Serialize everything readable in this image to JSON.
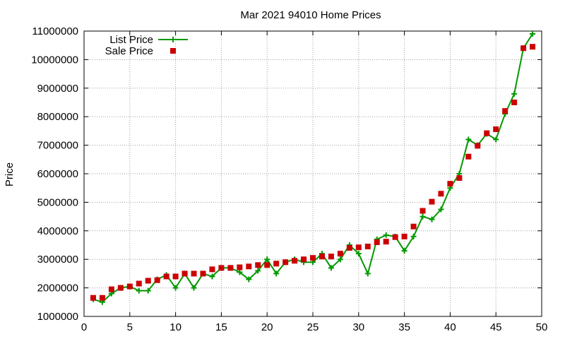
{
  "chart_data": {
    "type": "line",
    "title": "Mar 2021 94010 Home Prices",
    "xlabel": "",
    "ylabel": "Price",
    "xlim": [
      0,
      50
    ],
    "ylim": [
      1000000,
      11000000
    ],
    "xticks": [
      0,
      5,
      10,
      15,
      20,
      25,
      30,
      35,
      40,
      45,
      50
    ],
    "yticks": [
      1000000,
      2000000,
      3000000,
      4000000,
      5000000,
      6000000,
      7000000,
      8000000,
      9000000,
      10000000,
      11000000
    ],
    "grid": true,
    "legend_position": "top-left",
    "series": [
      {
        "name": "List Price",
        "style": "line+cross",
        "color": "#009900",
        "x": [
          1,
          2,
          3,
          4,
          5,
          6,
          7,
          8,
          9,
          10,
          11,
          12,
          13,
          14,
          15,
          16,
          17,
          18,
          19,
          20,
          21,
          22,
          23,
          24,
          25,
          26,
          27,
          28,
          29,
          30,
          31,
          32,
          33,
          34,
          35,
          36,
          37,
          38,
          39,
          40,
          41,
          42,
          43,
          44,
          45,
          46,
          47,
          48,
          49
        ],
        "values": [
          1600000,
          1500000,
          1800000,
          2000000,
          2050000,
          1900000,
          1900000,
          2300000,
          2450000,
          2000000,
          2500000,
          2000000,
          2500000,
          2400000,
          2700000,
          2700000,
          2550000,
          2300000,
          2600000,
          3000000,
          2500000,
          2900000,
          3000000,
          2900000,
          2900000,
          3200000,
          2700000,
          3000000,
          3500000,
          3200000,
          2500000,
          3700000,
          3850000,
          3800000,
          3300000,
          3800000,
          4500000,
          4400000,
          4750000,
          5500000,
          6000000,
          7200000,
          7000000,
          7400000,
          7200000,
          8100000,
          8800000,
          10400000,
          10900000
        ]
      },
      {
        "name": "Sale Price",
        "style": "square",
        "color": "#cc0000",
        "x": [
          1,
          2,
          3,
          4,
          5,
          6,
          7,
          8,
          9,
          10,
          11,
          12,
          13,
          14,
          15,
          16,
          17,
          18,
          19,
          20,
          21,
          22,
          23,
          24,
          25,
          26,
          27,
          28,
          29,
          30,
          31,
          32,
          33,
          34,
          35,
          36,
          37,
          38,
          39,
          40,
          41,
          42,
          43,
          44,
          45,
          46,
          47,
          48,
          49
        ],
        "values": [
          1650000,
          1650000,
          1950000,
          2000000,
          2050000,
          2150000,
          2250000,
          2270000,
          2400000,
          2400000,
          2500000,
          2500000,
          2500000,
          2650000,
          2700000,
          2700000,
          2720000,
          2750000,
          2800000,
          2800000,
          2850000,
          2900000,
          2950000,
          3000000,
          3050000,
          3100000,
          3100000,
          3200000,
          3400000,
          3420000,
          3450000,
          3600000,
          3620000,
          3780000,
          3800000,
          4150000,
          4700000,
          5020000,
          5300000,
          5650000,
          5850000,
          6600000,
          6980000,
          7420000,
          7560000,
          8200000,
          8500000,
          10400000,
          10450000
        ]
      }
    ]
  }
}
